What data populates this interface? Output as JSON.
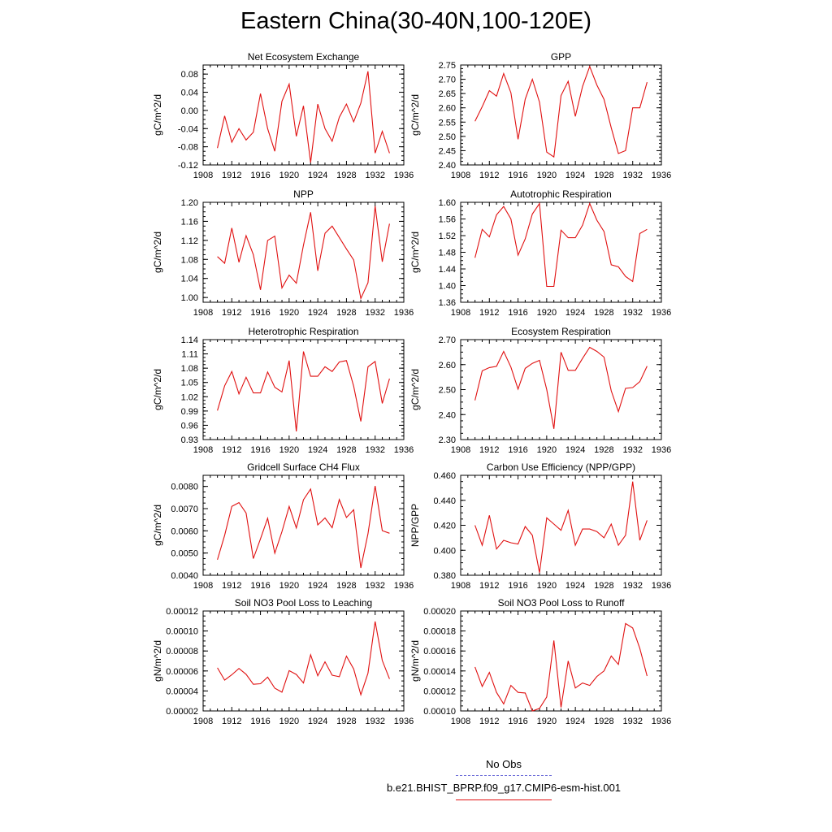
{
  "title": "Eastern China(30-40N,100-120E)",
  "legend": {
    "obs_label": "No Obs",
    "obs_color": "#6a6ad8",
    "case_label": "b.e21.BHIST_BPRP.f09_g17.CMIP6-esm-hist.001",
    "case_color": "#e01010"
  },
  "chart_data": [
    {
      "type": "line",
      "title": "Net Ecosystem Exchange",
      "ylabel": "gC/m^2/d",
      "xlim": [
        1908,
        1936
      ],
      "xticks": [
        "1908",
        "1912",
        "1916",
        "1920",
        "1924",
        "1928",
        "1932",
        "1936"
      ],
      "ylim": [
        -0.12,
        0.1
      ],
      "yticks": [
        "-0.12",
        "-0.08",
        "-0.04",
        "0.00",
        "0.04",
        "0.08"
      ],
      "x": [
        1910,
        1911,
        1912,
        1913,
        1914,
        1915,
        1916,
        1917,
        1918,
        1919,
        1920,
        1921,
        1922,
        1923,
        1924,
        1925,
        1926,
        1927,
        1928,
        1929,
        1930,
        1931,
        1932,
        1933,
        1934
      ],
      "values": [
        -0.083,
        -0.012,
        -0.07,
        -0.04,
        -0.065,
        -0.048,
        0.037,
        -0.04,
        -0.09,
        0.02,
        0.058,
        -0.057,
        0.01,
        -0.115,
        0.014,
        -0.04,
        -0.068,
        -0.015,
        0.014,
        -0.025,
        0.016,
        0.086,
        -0.094,
        -0.046,
        -0.094
      ]
    },
    {
      "type": "line",
      "title": "GPP",
      "ylabel": "gC/m^2/d",
      "xlim": [
        1908,
        1936
      ],
      "xticks": [
        "1908",
        "1912",
        "1916",
        "1920",
        "1924",
        "1928",
        "1932",
        "1936"
      ],
      "ylim": [
        2.4,
        2.75
      ],
      "yticks": [
        "2.40",
        "2.45",
        "2.50",
        "2.55",
        "2.60",
        "2.65",
        "2.70",
        "2.75"
      ],
      "x": [
        1910,
        1911,
        1912,
        1913,
        1914,
        1915,
        1916,
        1917,
        1918,
        1919,
        1920,
        1921,
        1922,
        1923,
        1924,
        1925,
        1926,
        1927,
        1928,
        1929,
        1930,
        1931,
        1932,
        1933,
        1934
      ],
      "values": [
        2.553,
        2.604,
        2.66,
        2.641,
        2.72,
        2.653,
        2.49,
        2.63,
        2.7,
        2.62,
        2.445,
        2.428,
        2.643,
        2.693,
        2.57,
        2.675,
        2.745,
        2.68,
        2.63,
        2.53,
        2.44,
        2.45,
        2.6,
        2.6,
        2.69
      ]
    },
    {
      "type": "line",
      "title": "NPP",
      "ylabel": "gC/m^2/d",
      "xlim": [
        1908,
        1936
      ],
      "xticks": [
        "1908",
        "1912",
        "1916",
        "1920",
        "1924",
        "1928",
        "1932",
        "1936"
      ],
      "ylim": [
        0.99,
        1.2
      ],
      "yticks": [
        "1.00",
        "1.04",
        "1.08",
        "1.12",
        "1.16",
        "1.20"
      ],
      "x": [
        1910,
        1911,
        1912,
        1913,
        1914,
        1915,
        1916,
        1917,
        1918,
        1919,
        1920,
        1921,
        1922,
        1923,
        1924,
        1925,
        1926,
        1927,
        1928,
        1929,
        1930,
        1931,
        1932,
        1933,
        1934
      ],
      "values": [
        1.086,
        1.072,
        1.146,
        1.074,
        1.13,
        1.09,
        1.016,
        1.12,
        1.129,
        1.02,
        1.047,
        1.03,
        1.11,
        1.179,
        1.056,
        1.135,
        1.15,
        1.126,
        1.102,
        1.079,
        0.998,
        1.031,
        1.192,
        1.075,
        1.155
      ]
    },
    {
      "type": "line",
      "title": "Autotrophic Respiration",
      "ylabel": "gC/m^2/d",
      "xlim": [
        1908,
        1936
      ],
      "xticks": [
        "1908",
        "1912",
        "1916",
        "1920",
        "1924",
        "1928",
        "1932",
        "1936"
      ],
      "ylim": [
        1.36,
        1.6
      ],
      "yticks": [
        "1.36",
        "1.40",
        "1.44",
        "1.48",
        "1.52",
        "1.56",
        "1.60"
      ],
      "x": [
        1910,
        1911,
        1912,
        1913,
        1914,
        1915,
        1916,
        1917,
        1918,
        1919,
        1920,
        1921,
        1922,
        1923,
        1924,
        1925,
        1926,
        1927,
        1928,
        1929,
        1930,
        1931,
        1932,
        1933,
        1934
      ],
      "values": [
        1.467,
        1.535,
        1.517,
        1.57,
        1.59,
        1.56,
        1.473,
        1.512,
        1.572,
        1.597,
        1.398,
        1.398,
        1.533,
        1.515,
        1.515,
        1.545,
        1.597,
        1.557,
        1.53,
        1.45,
        1.445,
        1.422,
        1.41,
        1.525,
        1.535
      ]
    },
    {
      "type": "line",
      "title": "Heterotrophic Respiration",
      "ylabel": "gC/m^2/d",
      "xlim": [
        1908,
        1936
      ],
      "xticks": [
        "1908",
        "1912",
        "1916",
        "1920",
        "1924",
        "1928",
        "1932",
        "1936"
      ],
      "ylim": [
        0.93,
        1.14
      ],
      "yticks": [
        "0.93",
        "0.96",
        "0.99",
        "1.02",
        "1.05",
        "1.08",
        "1.11",
        "1.14"
      ],
      "x": [
        1910,
        1911,
        1912,
        1913,
        1914,
        1915,
        1916,
        1917,
        1918,
        1919,
        1920,
        1921,
        1922,
        1923,
        1924,
        1925,
        1926,
        1927,
        1928,
        1929,
        1930,
        1931,
        1932,
        1933,
        1934
      ],
      "values": [
        0.991,
        1.043,
        1.073,
        1.026,
        1.061,
        1.028,
        1.028,
        1.072,
        1.04,
        1.03,
        1.096,
        0.947,
        1.115,
        1.063,
        1.063,
        1.083,
        1.073,
        1.093,
        1.096,
        1.042,
        0.968,
        1.083,
        1.094,
        1.006,
        1.058
      ]
    },
    {
      "type": "line",
      "title": "Ecosystem Respiration",
      "ylabel": "gC/m^2/d",
      "xlim": [
        1908,
        1936
      ],
      "xticks": [
        "1908",
        "1912",
        "1916",
        "1920",
        "1924",
        "1928",
        "1932",
        "1936"
      ],
      "ylim": [
        2.3,
        2.7
      ],
      "yticks": [
        "2.30",
        "2.40",
        "2.50",
        "2.60",
        "2.70"
      ],
      "x": [
        1910,
        1911,
        1912,
        1913,
        1914,
        1915,
        1916,
        1917,
        1918,
        1919,
        1920,
        1921,
        1922,
        1923,
        1924,
        1925,
        1926,
        1927,
        1928,
        1929,
        1930,
        1931,
        1932,
        1933,
        1934
      ],
      "values": [
        2.457,
        2.575,
        2.588,
        2.593,
        2.653,
        2.59,
        2.502,
        2.585,
        2.605,
        2.617,
        2.5,
        2.343,
        2.65,
        2.577,
        2.577,
        2.625,
        2.669,
        2.653,
        2.63,
        2.495,
        2.412,
        2.505,
        2.508,
        2.532,
        2.594
      ]
    },
    {
      "type": "line",
      "title": "Gridcell Surface CH4 Flux",
      "ylabel": "gC/m^2/d",
      "xlim": [
        1908,
        1936
      ],
      "xticks": [
        "1908",
        "1912",
        "1916",
        "1920",
        "1924",
        "1928",
        "1932",
        "1936"
      ],
      "ylim": [
        0.004,
        0.0085
      ],
      "yticks": [
        "0.0040",
        "0.0050",
        "0.0060",
        "0.0070",
        "0.0080"
      ],
      "x": [
        1910,
        1911,
        1912,
        1913,
        1914,
        1915,
        1916,
        1917,
        1918,
        1919,
        1920,
        1921,
        1922,
        1923,
        1924,
        1925,
        1926,
        1927,
        1928,
        1929,
        1930,
        1931,
        1932,
        1933,
        1934
      ],
      "values": [
        0.0047,
        0.0058,
        0.0071,
        0.00727,
        0.0068,
        0.00475,
        0.00564,
        0.00657,
        0.00499,
        0.00596,
        0.0071,
        0.00613,
        0.0074,
        0.00788,
        0.00627,
        0.00658,
        0.00614,
        0.00741,
        0.0066,
        0.00695,
        0.00433,
        0.00587,
        0.00802,
        0.00601,
        0.00589
      ]
    },
    {
      "type": "line",
      "title": "Carbon Use Efficiency (NPP/GPP)",
      "ylabel": "NPP/GPP",
      "xlim": [
        1908,
        1936
      ],
      "xticks": [
        "1908",
        "1912",
        "1916",
        "1920",
        "1924",
        "1928",
        "1932",
        "1936"
      ],
      "ylim": [
        0.38,
        0.46
      ],
      "yticks": [
        "0.380",
        "0.400",
        "0.420",
        "0.440",
        "0.460"
      ],
      "x": [
        1910,
        1911,
        1912,
        1913,
        1914,
        1915,
        1916,
        1917,
        1918,
        1919,
        1920,
        1921,
        1922,
        1923,
        1924,
        1925,
        1926,
        1927,
        1928,
        1929,
        1930,
        1931,
        1932,
        1933,
        1934
      ],
      "values": [
        0.42,
        0.404,
        0.428,
        0.401,
        0.408,
        0.406,
        0.405,
        0.419,
        0.412,
        0.382,
        0.426,
        0.421,
        0.416,
        0.432,
        0.404,
        0.417,
        0.417,
        0.415,
        0.41,
        0.421,
        0.404,
        0.412,
        0.455,
        0.408,
        0.424
      ]
    },
    {
      "type": "line",
      "title": "Soil NO3 Pool Loss to Leaching",
      "ylabel": "gN/m^2/d",
      "xlim": [
        1908,
        1936
      ],
      "xticks": [
        "1908",
        "1912",
        "1916",
        "1920",
        "1924",
        "1928",
        "1932",
        "1936"
      ],
      "ylim": [
        2e-05,
        0.00012
      ],
      "yticks": [
        "0.00002",
        "0.00004",
        "0.00006",
        "0.00008",
        "0.00010",
        "0.00012"
      ],
      "x": [
        1910,
        1911,
        1912,
        1913,
        1914,
        1915,
        1916,
        1917,
        1918,
        1919,
        1920,
        1921,
        1922,
        1923,
        1924,
        1925,
        1926,
        1927,
        1928,
        1929,
        1930,
        1931,
        1932,
        1933,
        1934
      ],
      "values": [
        6.32e-05,
        5.08e-05,
        5.62e-05,
        6.25e-05,
        5.67e-05,
        4.67e-05,
        4.72e-05,
        5.38e-05,
        4.28e-05,
        3.88e-05,
        6.03e-05,
        5.65e-05,
        4.8e-05,
        7.62e-05,
        5.52e-05,
        6.92e-05,
        5.58e-05,
        5.42e-05,
        7.48e-05,
        6.2e-05,
        3.62e-05,
        5.78e-05,
        0.0001095,
        7.05e-05,
        5.2e-05
      ]
    },
    {
      "type": "line",
      "title": "Soil NO3 Pool Loss to Runoff",
      "ylabel": "gN/m^2/d",
      "xlim": [
        1908,
        1936
      ],
      "xticks": [
        "1908",
        "1912",
        "1916",
        "1920",
        "1924",
        "1928",
        "1932",
        "1936"
      ],
      "ylim": [
        0.0001,
        0.0002
      ],
      "yticks": [
        "0.00010",
        "0.00012",
        "0.00014",
        "0.00016",
        "0.00018",
        "0.00020"
      ],
      "x": [
        1910,
        1911,
        1912,
        1913,
        1914,
        1915,
        1916,
        1917,
        1918,
        1919,
        1920,
        1921,
        1922,
        1923,
        1924,
        1925,
        1926,
        1927,
        1928,
        1929,
        1930,
        1931,
        1932,
        1933,
        1934
      ],
      "values": [
        0.000144,
        0.0001245,
        0.0001385,
        0.0001185,
        0.000107,
        0.0001255,
        0.0001185,
        0.000118,
        0.0001,
        0.0001025,
        0.000114,
        0.0001705,
        0.0001035,
        0.00015,
        0.000123,
        0.000128,
        0.0001255,
        0.0001345,
        0.00014,
        0.000155,
        0.0001465,
        0.0001875,
        0.000183,
        0.0001625,
        0.000135
      ]
    }
  ]
}
